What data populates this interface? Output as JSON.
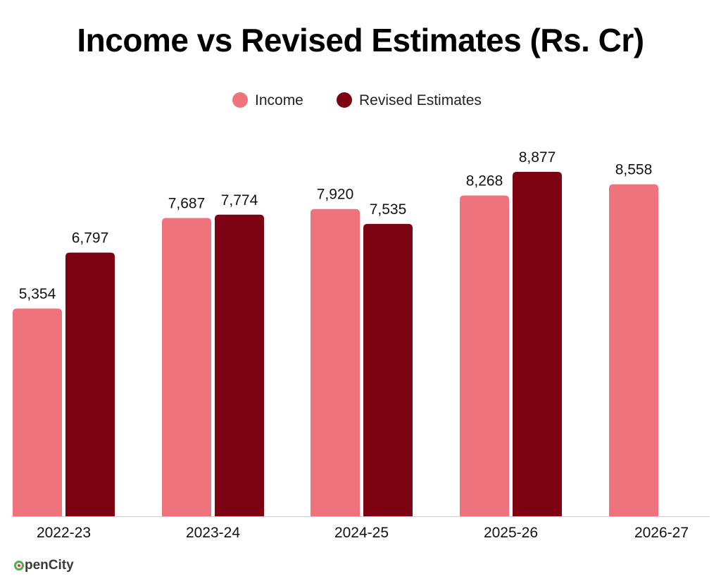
{
  "chart_data": {
    "type": "bar",
    "title": "Income vs Revised Estimates (Rs. Cr)",
    "xlabel": "",
    "ylabel": "",
    "ylim": [
      0,
      8877
    ],
    "grid": false,
    "legend_position": "top-center",
    "categories": [
      "2022-23",
      "2023-24",
      "2024-25",
      "2025-26",
      "2026-27"
    ],
    "series": [
      {
        "name": "Income",
        "color": "#ef737c",
        "values": [
          5354,
          7687,
          7920,
          8268,
          8558
        ],
        "labels": [
          "5,354",
          "7,687",
          "7,920",
          "8,268",
          "8,558"
        ]
      },
      {
        "name": "Revised Estimates",
        "color": "#7d0313",
        "values": [
          6797,
          7774,
          7535,
          8877,
          null
        ],
        "labels": [
          "6,797",
          "7,774",
          "7,535",
          "8,877",
          ""
        ]
      }
    ]
  },
  "branding": {
    "logo_text": "penCity"
  }
}
